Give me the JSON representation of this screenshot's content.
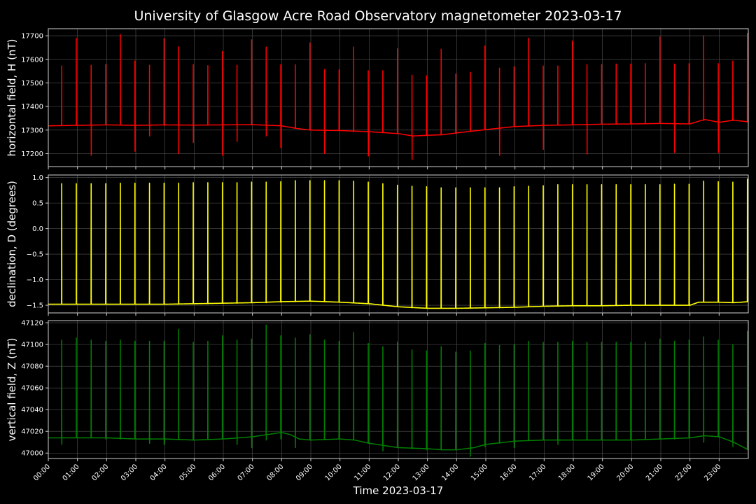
{
  "chart_data": {
    "title": "University of Glasgow Acre Road Observatory magnetometer 2023-03-17",
    "xlabel": "Time 2023-03-17",
    "type": "line",
    "x_ticks": [
      "00:00",
      "01:00",
      "02:00",
      "03:00",
      "04:00",
      "05:00",
      "06:00",
      "07:00",
      "08:00",
      "09:00",
      "10:00",
      "11:00",
      "12:00",
      "13:00",
      "14:00",
      "15:00",
      "16:00",
      "17:00",
      "18:00",
      "19:00",
      "20:00",
      "21:00",
      "22:00",
      "23:00"
    ],
    "xlim_hours": [
      0,
      24
    ],
    "grid": true,
    "panels": [
      {
        "name": "horizontal",
        "ylabel": "horizontal field, H (nT)",
        "color": "#ff0000",
        "ylim": [
          17145,
          17730
        ],
        "yticks": [
          17200,
          17300,
          17400,
          17500,
          17600,
          17700
        ],
        "ytick_labels": [
          "17200",
          "17300",
          "17400",
          "17500",
          "17600",
          "17700"
        ],
        "baseline": [
          [
            0,
            17318
          ],
          [
            1,
            17320
          ],
          [
            2,
            17322
          ],
          [
            3,
            17320
          ],
          [
            4,
            17322
          ],
          [
            5,
            17321
          ],
          [
            6,
            17322
          ],
          [
            7,
            17323
          ],
          [
            8,
            17318
          ],
          [
            8.5,
            17307
          ],
          [
            9,
            17300
          ],
          [
            10,
            17298
          ],
          [
            11,
            17293
          ],
          [
            12,
            17285
          ],
          [
            12.5,
            17275
          ],
          [
            13,
            17278
          ],
          [
            13.5,
            17280
          ],
          [
            14,
            17288
          ],
          [
            15,
            17302
          ],
          [
            16,
            17315
          ],
          [
            17,
            17320
          ],
          [
            18,
            17322
          ],
          [
            19,
            17325
          ],
          [
            20,
            17326
          ],
          [
            21,
            17328
          ],
          [
            22,
            17326
          ],
          [
            22.5,
            17345
          ],
          [
            23,
            17333
          ],
          [
            23.5,
            17342
          ],
          [
            24,
            17335
          ]
        ],
        "spike_times": [
          0.46,
          0.96,
          1.47,
          1.97,
          2.47,
          2.97,
          3.47,
          3.97,
          4.47,
          4.97,
          5.47,
          5.97,
          6.47,
          6.97,
          7.47,
          7.97,
          8.47,
          8.97,
          9.47,
          9.97,
          10.47,
          10.97,
          11.47,
          11.97,
          12.47,
          12.97,
          13.47,
          13.97,
          14.47,
          14.97,
          15.47,
          15.97,
          16.47,
          16.97,
          17.47,
          17.97,
          18.47,
          18.97,
          19.47,
          19.97,
          20.47,
          20.97,
          21.47,
          21.97,
          22.47,
          22.97,
          23.47,
          23.97
        ],
        "spike_max": [
          17572,
          17690,
          17575,
          17578,
          17705,
          17593,
          17575,
          17688,
          17653,
          17578,
          17573,
          17633,
          17575,
          17683,
          17652,
          17577,
          17577,
          17670,
          17557,
          17555,
          17652,
          17552,
          17552,
          17645,
          17533,
          17530,
          17643,
          17538,
          17545,
          17657,
          17563,
          17568,
          17690,
          17572,
          17572,
          17678,
          17578,
          17578,
          17580,
          17580,
          17582,
          17695,
          17580,
          17582,
          17700,
          17582,
          17593,
          17710
        ],
        "spike_min": [
          17320,
          17320,
          17193,
          17322,
          17322,
          17210,
          17275,
          17320,
          17200,
          17247,
          17322,
          17193,
          17252,
          17322,
          17275,
          17225,
          17308,
          17300,
          17200,
          17298,
          17293,
          17190,
          17292,
          17285,
          17175,
          17276,
          17280,
          17285,
          17295,
          17302,
          17193,
          17315,
          17320,
          17218,
          17322,
          17322,
          17198,
          17325,
          17326,
          17326,
          17327,
          17328,
          17205,
          17326,
          17340,
          17205,
          17340,
          17335
        ]
      },
      {
        "name": "declination",
        "ylabel": "declination, D (degrees)",
        "color": "#ffff00",
        "ylim": [
          -1.65,
          1.05
        ],
        "yticks": [
          -1.5,
          -1.0,
          -0.5,
          0.0,
          0.5,
          1.0
        ],
        "ytick_labels": [
          "−1.5",
          "−1.0",
          "−0.5",
          "0.0",
          "0.5",
          "1.0"
        ],
        "baseline": [
          [
            0,
            -1.48
          ],
          [
            1,
            -1.48
          ],
          [
            2,
            -1.48
          ],
          [
            3,
            -1.48
          ],
          [
            4,
            -1.48
          ],
          [
            5,
            -1.47
          ],
          [
            6,
            -1.46
          ],
          [
            7,
            -1.45
          ],
          [
            8,
            -1.43
          ],
          [
            9,
            -1.42
          ],
          [
            10,
            -1.44
          ],
          [
            11,
            -1.47
          ],
          [
            11.5,
            -1.5
          ],
          [
            12,
            -1.53
          ],
          [
            13,
            -1.56
          ],
          [
            14,
            -1.56
          ],
          [
            15,
            -1.55
          ],
          [
            16,
            -1.54
          ],
          [
            17,
            -1.52
          ],
          [
            18,
            -1.51
          ],
          [
            19,
            -1.51
          ],
          [
            20,
            -1.5
          ],
          [
            21,
            -1.5
          ],
          [
            22,
            -1.5
          ],
          [
            22.3,
            -1.44
          ],
          [
            23,
            -1.44
          ],
          [
            23.5,
            -1.45
          ],
          [
            24,
            -1.43
          ]
        ],
        "spike_times": [
          0.46,
          0.96,
          1.47,
          1.97,
          2.47,
          2.97,
          3.47,
          3.97,
          4.47,
          4.97,
          5.47,
          5.97,
          6.47,
          6.97,
          7.47,
          7.97,
          8.47,
          8.97,
          9.47,
          9.97,
          10.47,
          10.97,
          11.47,
          11.97,
          12.47,
          12.97,
          13.47,
          13.97,
          14.47,
          14.97,
          15.47,
          15.97,
          16.47,
          16.97,
          17.47,
          17.97,
          18.47,
          18.97,
          19.47,
          19.97,
          20.47,
          20.97,
          21.47,
          21.97,
          22.47,
          22.97,
          23.47,
          23.97
        ],
        "spike_max": [
          0.88,
          0.88,
          0.88,
          0.88,
          0.89,
          0.89,
          0.89,
          0.89,
          0.89,
          0.9,
          0.9,
          0.9,
          0.9,
          0.91,
          0.91,
          0.92,
          0.94,
          0.94,
          0.94,
          0.94,
          0.93,
          0.91,
          0.88,
          0.85,
          0.83,
          0.82,
          0.8,
          0.8,
          0.8,
          0.8,
          0.8,
          0.82,
          0.83,
          0.84,
          0.86,
          0.86,
          0.86,
          0.86,
          0.86,
          0.86,
          0.86,
          0.86,
          0.87,
          0.87,
          0.93,
          0.92,
          0.91,
          0.97
        ],
        "spike_min": [
          -1.48,
          -1.48,
          -1.48,
          -1.48,
          -1.48,
          -1.48,
          -1.48,
          -1.48,
          -1.48,
          -1.47,
          -1.47,
          -1.46,
          -1.46,
          -1.45,
          -1.45,
          -1.44,
          -1.43,
          -1.42,
          -1.43,
          -1.44,
          -1.45,
          -1.47,
          -1.5,
          -1.53,
          -1.55,
          -1.56,
          -1.56,
          -1.56,
          -1.56,
          -1.55,
          -1.55,
          -1.54,
          -1.53,
          -1.52,
          -1.52,
          -1.51,
          -1.51,
          -1.51,
          -1.5,
          -1.5,
          -1.5,
          -1.5,
          -1.5,
          -1.5,
          -1.44,
          -1.44,
          -1.45,
          -1.43
        ]
      },
      {
        "name": "vertical",
        "ylabel": "vertical field, Z (nT)",
        "color": "#008000",
        "ylim": [
          46995,
          47122
        ],
        "yticks": [
          47000,
          47020,
          47040,
          47060,
          47080,
          47100,
          47120
        ],
        "ytick_labels": [
          "47000",
          "47020",
          "47040",
          "47060",
          "47080",
          "47100",
          "47120"
        ],
        "baseline": [
          [
            0,
            47014
          ],
          [
            1,
            47014
          ],
          [
            2,
            47014
          ],
          [
            3,
            47013
          ],
          [
            4,
            47013
          ],
          [
            5,
            47012
          ],
          [
            6,
            47013
          ],
          [
            7,
            47015
          ],
          [
            7.5,
            47017
          ],
          [
            8,
            47019
          ],
          [
            8.3,
            47017
          ],
          [
            8.6,
            47013
          ],
          [
            9,
            47012
          ],
          [
            10,
            47013
          ],
          [
            10.5,
            47012
          ],
          [
            11,
            47009
          ],
          [
            11.5,
            47007
          ],
          [
            12,
            47005
          ],
          [
            13,
            47004
          ],
          [
            13.5,
            47003
          ],
          [
            14,
            47003
          ],
          [
            14.6,
            47005
          ],
          [
            15,
            47008
          ],
          [
            16,
            47011
          ],
          [
            17,
            47012
          ],
          [
            18,
            47012
          ],
          [
            19,
            47012
          ],
          [
            20,
            47012
          ],
          [
            21,
            47013
          ],
          [
            22,
            47014
          ],
          [
            22.5,
            47016
          ],
          [
            23,
            47015
          ],
          [
            23.5,
            47010
          ],
          [
            24,
            47003
          ]
        ],
        "spike_times": [
          0.46,
          0.96,
          1.47,
          1.97,
          2.47,
          2.97,
          3.47,
          3.97,
          4.47,
          4.97,
          5.47,
          5.97,
          6.47,
          6.97,
          7.47,
          7.97,
          8.47,
          8.97,
          9.47,
          9.97,
          10.47,
          10.97,
          11.47,
          11.97,
          12.47,
          12.97,
          13.47,
          13.97,
          14.47,
          14.97,
          15.47,
          15.97,
          16.47,
          16.97,
          17.47,
          17.97,
          18.47,
          18.97,
          19.47,
          19.97,
          20.47,
          20.97,
          21.47,
          21.97,
          22.47,
          22.97,
          23.47,
          23.97
        ],
        "spike_max": [
          47104,
          47106,
          47104,
          47103,
          47104,
          47103,
          47103,
          47103,
          47114,
          47102,
          47103,
          47108,
          47104,
          47105,
          47118,
          47108,
          47106,
          47109,
          47104,
          47103,
          47111,
          47101,
          47098,
          47102,
          47095,
          47094,
          47098,
          47093,
          47094,
          47101,
          47099,
          47100,
          47103,
          47102,
          47102,
          47103,
          47102,
          47102,
          47102,
          47102,
          47102,
          47105,
          47103,
          47104,
          47107,
          47104,
          47100,
          47112
        ],
        "spike_min": [
          47008,
          47014,
          47014,
          47013,
          47013,
          47013,
          47009,
          47008,
          47013,
          47012,
          47013,
          47013,
          47008,
          47005,
          47012,
          47013,
          47005,
          47012,
          47013,
          47013,
          47012,
          47009,
          47002,
          47005,
          47004,
          47003,
          47003,
          47003,
          46997,
          47006,
          47009,
          47005,
          47012,
          47012,
          47008,
          47012,
          47012,
          47012,
          47012,
          47012,
          47013,
          47013,
          47013,
          47014,
          47010,
          47015,
          47006,
          47003
        ]
      }
    ]
  }
}
